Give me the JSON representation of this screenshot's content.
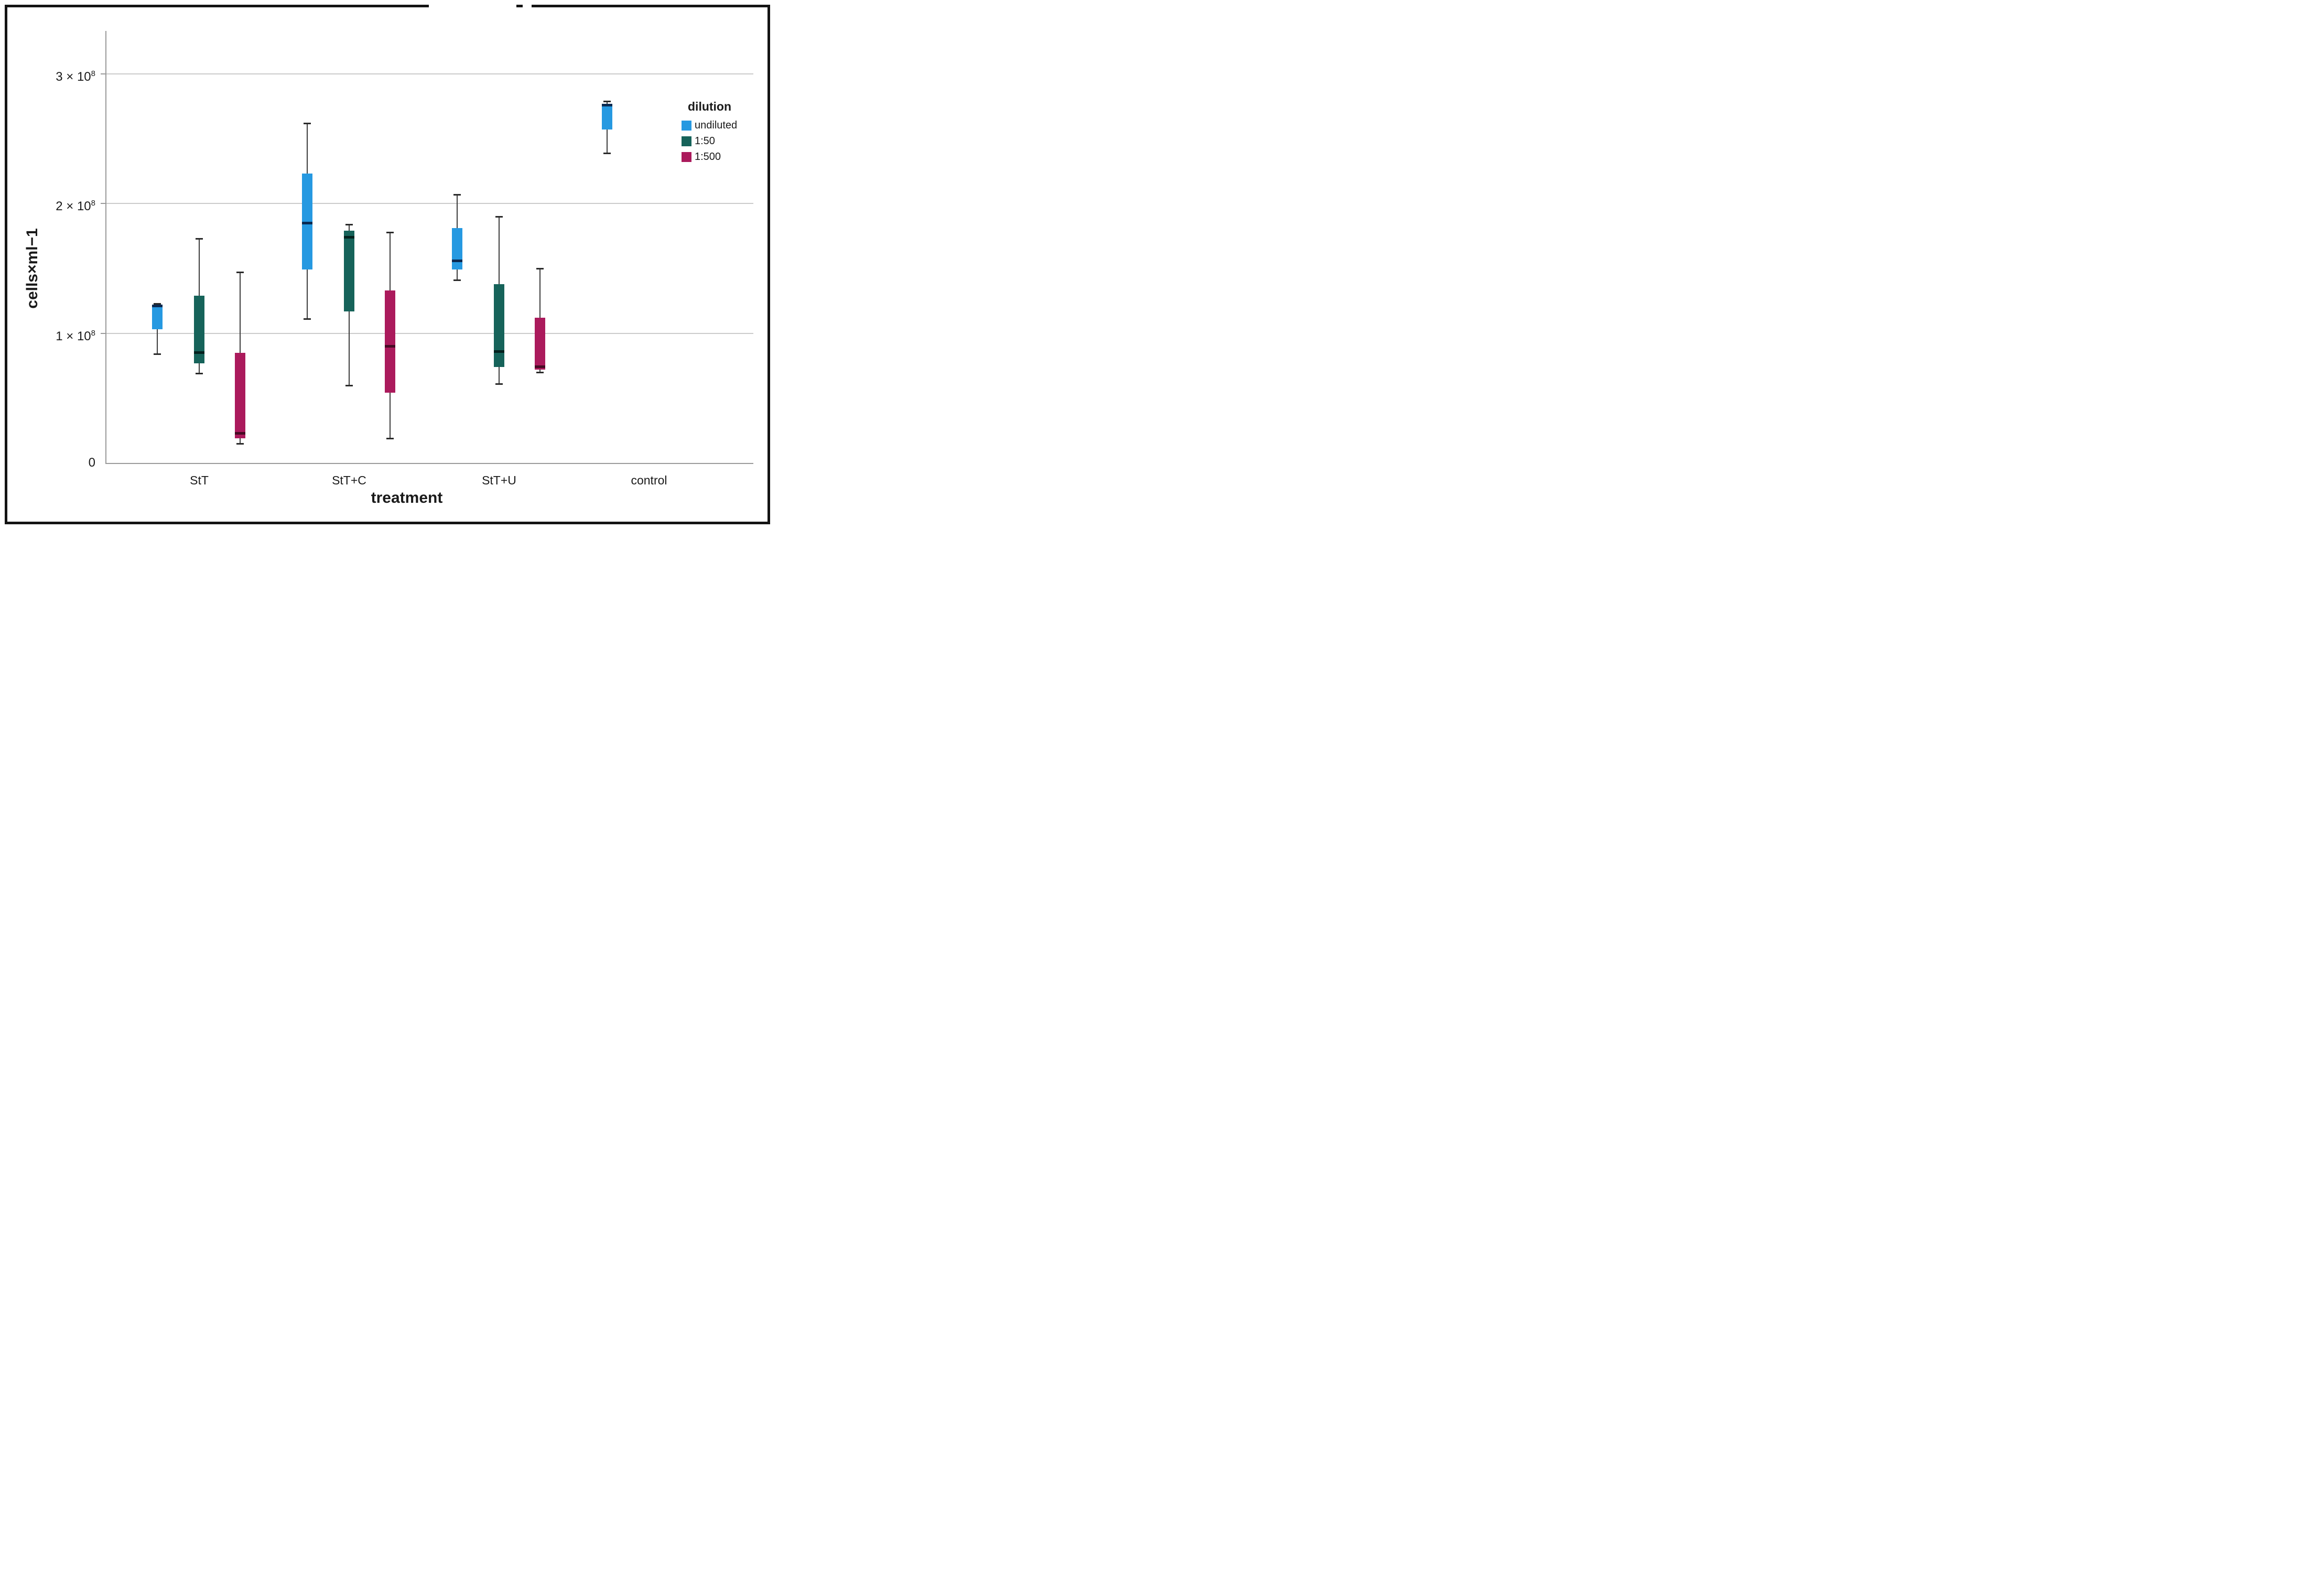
{
  "y_axis": {
    "title": "cells×ml−1",
    "ticks": [
      {
        "text": "3 × 10",
        "sup": "8",
        "value": 3
      },
      {
        "text": "2 × 10",
        "sup": "8",
        "value": 2
      },
      {
        "text": "1 × 10",
        "sup": "8",
        "value": 1
      },
      {
        "text": "0",
        "sup": "",
        "value": 0
      }
    ]
  },
  "x_axis": {
    "title": "treatment",
    "categories": [
      "StT",
      "StT+C",
      "StT+U",
      "control"
    ]
  },
  "legend": {
    "title": "dilution",
    "entries": [
      {
        "label": "undiluted",
        "color": "#2699e1"
      },
      {
        "label": "1:50",
        "color": "#16635a"
      },
      {
        "label": "1:500",
        "color": "#ab1a5c"
      }
    ]
  },
  "chart_data": {
    "type": "boxplot",
    "title": "",
    "xlabel": "treatment",
    "ylabel": "cells×ml−1",
    "value_unit": "10^8 cells per ml",
    "ylim": [
      0,
      3.36
    ],
    "grid_values": [
      1,
      2,
      3
    ],
    "grid_on": true,
    "legend_position": "right-top",
    "categories": [
      "StT",
      "StT+C",
      "StT+U",
      "control"
    ],
    "series": [
      {
        "name": "undiluted",
        "color": "#2699e1",
        "median_color": "#0a2a52",
        "boxes": [
          {
            "category": "StT",
            "whisker_low": 0.84,
            "q1": 1.03,
            "median": 1.21,
            "q3": 1.22,
            "whisker_high": 1.23
          },
          {
            "category": "StT+C",
            "whisker_low": 1.11,
            "q1": 1.49,
            "median": 1.85,
            "q3": 2.23,
            "whisker_high": 2.62
          },
          {
            "category": "StT+U",
            "whisker_low": 1.41,
            "q1": 1.49,
            "median": 1.56,
            "q3": 1.81,
            "whisker_high": 2.07
          },
          {
            "category": "control",
            "whisker_low": 2.39,
            "q1": 2.57,
            "median": 2.76,
            "q3": 2.77,
            "whisker_high": 2.79
          }
        ]
      },
      {
        "name": "1:50",
        "color": "#16635a",
        "median_color": "#04211e",
        "boxes": [
          {
            "category": "StT",
            "whisker_low": 0.69,
            "q1": 0.77,
            "median": 0.85,
            "q3": 1.29,
            "whisker_high": 1.73
          },
          {
            "category": "StT+C",
            "whisker_low": 0.6,
            "q1": 1.17,
            "median": 1.74,
            "q3": 1.79,
            "whisker_high": 1.84
          },
          {
            "category": "StT+U",
            "whisker_low": 0.61,
            "q1": 0.74,
            "median": 0.86,
            "q3": 1.38,
            "whisker_high": 1.9
          },
          null
        ]
      },
      {
        "name": "1:500",
        "color": "#ab1a5c",
        "median_color": "#470a24",
        "boxes": [
          {
            "category": "StT",
            "whisker_low": 0.15,
            "q1": 0.19,
            "median": 0.23,
            "q3": 0.85,
            "whisker_high": 1.47
          },
          {
            "category": "StT+C",
            "whisker_low": 0.19,
            "q1": 0.54,
            "median": 0.9,
            "q3": 1.33,
            "whisker_high": 1.78
          },
          {
            "category": "StT+U",
            "whisker_low": 0.7,
            "q1": 0.72,
            "median": 0.74,
            "q3": 1.12,
            "whisker_high": 1.5
          },
          null
        ]
      }
    ]
  }
}
